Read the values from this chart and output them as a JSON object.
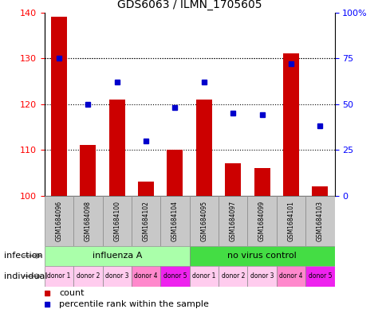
{
  "title": "GDS6063 / ILMN_1705605",
  "samples": [
    "GSM1684096",
    "GSM1684098",
    "GSM1684100",
    "GSM1684102",
    "GSM1684104",
    "GSM1684095",
    "GSM1684097",
    "GSM1684099",
    "GSM1684101",
    "GSM1684103"
  ],
  "counts": [
    139,
    111,
    121,
    103,
    110,
    121,
    107,
    106,
    131,
    102
  ],
  "percentiles": [
    75,
    50,
    62,
    30,
    48,
    62,
    45,
    44,
    72,
    38
  ],
  "ylim_left": [
    100,
    140
  ],
  "ylim_right": [
    0,
    100
  ],
  "yticks_left": [
    100,
    110,
    120,
    130,
    140
  ],
  "yticks_right": [
    0,
    25,
    50,
    75,
    100
  ],
  "yticklabels_right": [
    "0",
    "25",
    "50",
    "75",
    "100%"
  ],
  "infection_groups": [
    {
      "label": "influenza A",
      "start": 0,
      "end": 5,
      "color": "#AAFFAA"
    },
    {
      "label": "no virus control",
      "start": 5,
      "end": 10,
      "color": "#44DD44"
    }
  ],
  "individual_labels": [
    "donor 1",
    "donor 2",
    "donor 3",
    "donor 4",
    "donor 5",
    "donor 1",
    "donor 2",
    "donor 3",
    "donor 4",
    "donor 5"
  ],
  "individual_colors": [
    "#FFCCEE",
    "#FFCCEE",
    "#FFCCEE",
    "#FF88CC",
    "#EE22EE",
    "#FFCCEE",
    "#FFCCEE",
    "#FFCCEE",
    "#FF88CC",
    "#EE22EE"
  ],
  "bar_color": "#CC0000",
  "dot_color": "#0000CC",
  "bg_color": "#FFFFFF",
  "sample_bg": "#C8C8C8"
}
